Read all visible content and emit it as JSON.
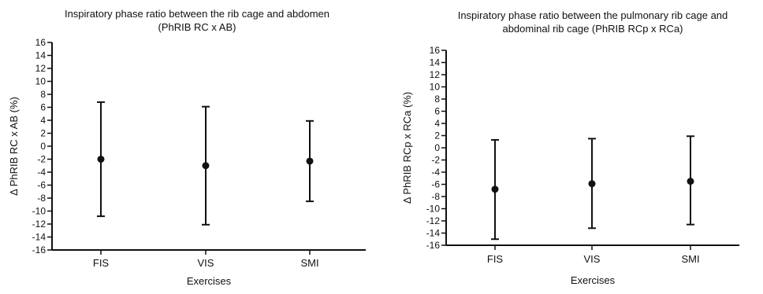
{
  "chart_data": [
    {
      "type": "scatter",
      "title_lines": [
        "Inspiratory phase ratio between the rib cage and abdomen",
        "(PhRIB RC x AB)"
      ],
      "xlabel": "Exercises",
      "ylabel": "Δ PhRIB RC x AB (%)",
      "categories": [
        "FIS",
        "VIS",
        "SMI"
      ],
      "series": [
        {
          "mean": [
            -2.0,
            -3.0,
            -2.3
          ],
          "lower": [
            -10.8,
            -12.1,
            -8.5
          ],
          "upper": [
            6.8,
            6.1,
            3.9
          ]
        }
      ],
      "ylim": [
        -16,
        16
      ],
      "yticks": [
        16,
        14,
        12,
        10,
        8,
        6,
        4,
        2,
        0,
        -2,
        -4,
        -6,
        -8,
        -10,
        -12,
        -14,
        -16
      ],
      "grid": false,
      "marker": "filled-circle",
      "error_bars": true
    },
    {
      "type": "scatter",
      "title_lines": [
        "Inspiratory phase ratio between the pulmonary rib cage and",
        "abdominal rib cage (PhRIB RCp x RCa)"
      ],
      "xlabel": "Exercises",
      "ylabel": "Δ PhRIB RCp x RCa (%)",
      "categories": [
        "FIS",
        "VIS",
        "SMI"
      ],
      "series": [
        {
          "mean": [
            -6.8,
            -5.9,
            -5.5
          ],
          "lower": [
            -15.0,
            -13.2,
            -12.6
          ],
          "upper": [
            1.3,
            1.5,
            1.9
          ]
        }
      ],
      "ylim": [
        -16,
        16
      ],
      "yticks": [
        16,
        14,
        12,
        10,
        8,
        6,
        4,
        2,
        0,
        -2,
        -4,
        -6,
        -8,
        -10,
        -12,
        -14,
        -16
      ],
      "grid": false,
      "marker": "filled-circle",
      "error_bars": true
    }
  ],
  "colors": {
    "ink": "#111111",
    "background": "#ffffff"
  }
}
